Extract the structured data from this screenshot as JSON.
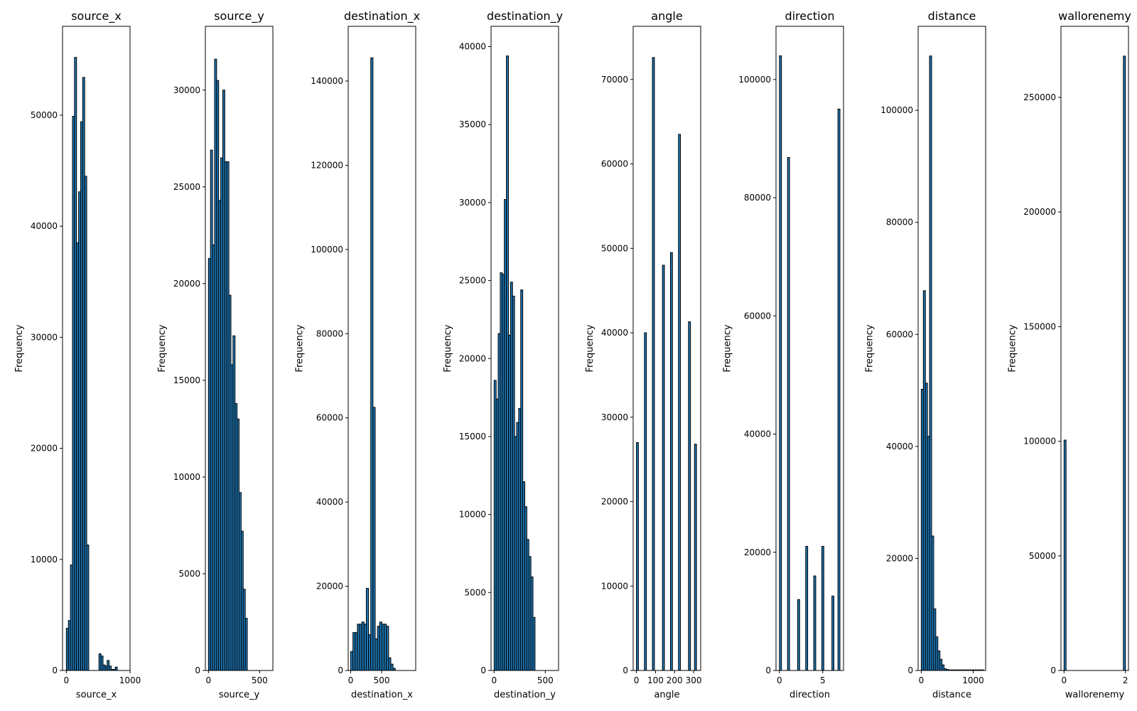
{
  "chart_data": [
    {
      "type": "bar",
      "title": "source_x",
      "xlabel": "source_x",
      "ylabel": "Frequency",
      "xlim": [
        -60,
        1000
      ],
      "ylim": [
        0,
        58000
      ],
      "xticks": [
        0,
        1000
      ],
      "yticks": [
        0,
        10000,
        20000,
        30000,
        40000,
        50000
      ],
      "bin_start": 0,
      "bin_width": 32,
      "values": [
        3800,
        4500,
        9500,
        49900,
        55200,
        38500,
        43100,
        49400,
        53400,
        44500,
        11300,
        0,
        0,
        0,
        0,
        0,
        1500,
        1300,
        500,
        400,
        900,
        400,
        100,
        100,
        300,
        0,
        0,
        0,
        0,
        0
      ]
    },
    {
      "type": "bar",
      "title": "source_y",
      "xlabel": "source_y",
      "ylabel": "Frequency",
      "xlim": [
        -30,
        630
      ],
      "ylim": [
        0,
        33300
      ],
      "xticks": [
        0,
        500
      ],
      "yticks": [
        0,
        5000,
        10000,
        15000,
        20000,
        25000,
        30000
      ],
      "bin_start": 0,
      "bin_width": 20,
      "values": [
        21300,
        26900,
        22000,
        31600,
        30500,
        24300,
        26500,
        30000,
        26300,
        26300,
        19400,
        15800,
        17300,
        13800,
        13000,
        9200,
        7200,
        4200,
        2700,
        0
      ]
    },
    {
      "type": "bar",
      "title": "destination_x",
      "xlabel": "destination_x",
      "ylabel": "Frequency",
      "xlim": [
        -40,
        1050
      ],
      "ylim": [
        0,
        153000
      ],
      "xticks": [
        0,
        500
      ],
      "yticks": [
        0,
        20000,
        40000,
        60000,
        80000,
        100000,
        120000,
        140000
      ],
      "bin_start": 0,
      "bin_width": 36,
      "values": [
        4500,
        9000,
        9000,
        11000,
        11000,
        11500,
        11000,
        19500,
        8500,
        145500,
        62500,
        7500,
        10500,
        11500,
        11000,
        11000,
        10500,
        3000,
        1500,
        500,
        0
      ]
    },
    {
      "type": "bar",
      "title": "destination_y",
      "xlabel": "destination_y",
      "ylabel": "Frequency",
      "xlim": [
        -30,
        630
      ],
      "ylim": [
        0,
        41300
      ],
      "xticks": [
        0,
        500
      ],
      "yticks": [
        0,
        5000,
        10000,
        15000,
        20000,
        25000,
        30000,
        35000,
        40000
      ],
      "bin_start": 0,
      "bin_width": 20,
      "values": [
        18600,
        17400,
        21600,
        25500,
        25400,
        30200,
        39400,
        21500,
        24900,
        24000,
        15000,
        15900,
        16800,
        24400,
        12100,
        10500,
        8400,
        7300,
        6000,
        3400
      ]
    },
    {
      "type": "bar",
      "title": "angle",
      "xlabel": "angle",
      "ylabel": "Frequency",
      "xlim": [
        -17,
        337
      ],
      "ylim": [
        0,
        76300
      ],
      "xticks": [
        0,
        100,
        200,
        300
      ],
      "yticks": [
        0,
        10000,
        20000,
        30000,
        40000,
        50000,
        60000,
        70000
      ],
      "bin_start": 0,
      "bin_width": 10.5,
      "values": [
        27000,
        0,
        0,
        0,
        40000,
        0,
        0,
        0,
        72600,
        0,
        0,
        0,
        0,
        48000,
        0,
        0,
        0,
        49500,
        0,
        0,
        0,
        63500,
        0,
        0,
        0,
        0,
        41300,
        0,
        0,
        26800
      ]
    },
    {
      "type": "bar",
      "title": "direction",
      "xlabel": "direction",
      "ylabel": "Frequency",
      "xlim": [
        -0.4,
        7.4
      ],
      "ylim": [
        0,
        109000
      ],
      "xticks": [
        0,
        5
      ],
      "yticks": [
        0,
        20000,
        40000,
        60000,
        80000,
        100000
      ],
      "bin_start": 0,
      "bin_width": 0.233,
      "values": [
        104000,
        0,
        0,
        0,
        86800,
        0,
        0,
        0,
        0,
        12000,
        0,
        0,
        0,
        21000,
        0,
        0,
        0,
        16000,
        0,
        0,
        0,
        21000,
        0,
        0,
        0,
        0,
        12600,
        0,
        0,
        95000
      ]
    },
    {
      "type": "bar",
      "title": "distance",
      "xlabel": "distance",
      "ylabel": "Frequency",
      "xlim": [
        -60,
        1240
      ],
      "ylim": [
        0,
        115000
      ],
      "xticks": [
        0,
        1000
      ],
      "yticks": [
        0,
        20000,
        40000,
        60000,
        80000,
        100000
      ],
      "bin_start": 0,
      "bin_width": 40,
      "values": [
        50200,
        67800,
        51300,
        41800,
        109700,
        24000,
        11000,
        6000,
        3500,
        2000,
        1000,
        300,
        200,
        100,
        100,
        100,
        100,
        100,
        100,
        100,
        100,
        100,
        100,
        100,
        100,
        100,
        100,
        100,
        100,
        100
      ]
    },
    {
      "type": "bar",
      "title": "wallorenemy",
      "xlabel": "wallorenemy",
      "ylabel": "Frequency",
      "xlim": [
        -0.1,
        2.1
      ],
      "ylim": [
        0,
        281000
      ],
      "xticks": [
        0,
        2
      ],
      "yticks": [
        0,
        50000,
        100000,
        150000,
        200000,
        250000
      ],
      "bin_start": 0,
      "bin_width": 0.0667,
      "values": [
        100500,
        0,
        0,
        0,
        0,
        0,
        0,
        0,
        0,
        0,
        0,
        0,
        0,
        0,
        0,
        0,
        0,
        0,
        0,
        0,
        0,
        0,
        0,
        0,
        0,
        0,
        0,
        0,
        0,
        268000
      ]
    }
  ]
}
